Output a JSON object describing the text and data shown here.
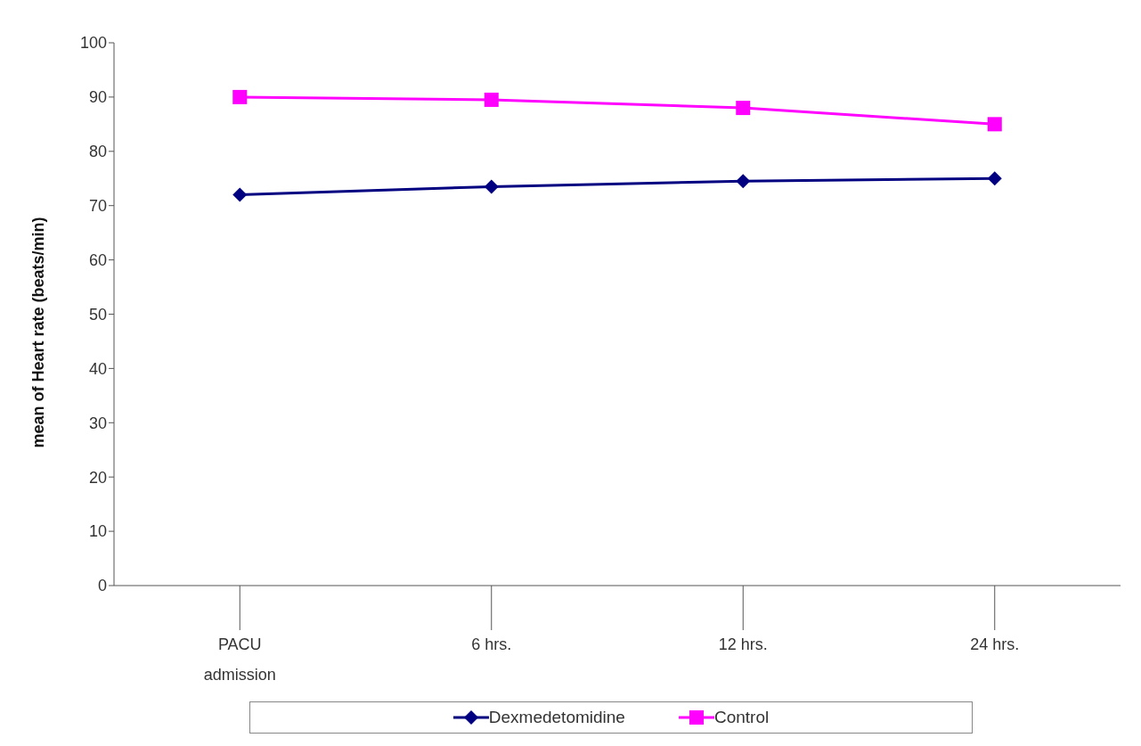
{
  "chart_data": {
    "type": "line",
    "ylabel": "mean of Heart rate (beats/min)",
    "categories": [
      "PACU admission",
      "6 hrs.",
      "12 hrs.",
      "24 hrs."
    ],
    "series": [
      {
        "name": "Dexmedetomidine",
        "color": "#000080",
        "marker": "diamond",
        "values": [
          72,
          73.5,
          74.5,
          75
        ]
      },
      {
        "name": "Control",
        "color": "#ff00ff",
        "marker": "square",
        "values": [
          90,
          89.5,
          88,
          85
        ]
      }
    ],
    "ylim": [
      0,
      100
    ],
    "yticks": [
      0,
      10,
      20,
      30,
      40,
      50,
      60,
      70,
      80,
      90,
      100
    ],
    "grid": false,
    "legend": "bottom"
  }
}
